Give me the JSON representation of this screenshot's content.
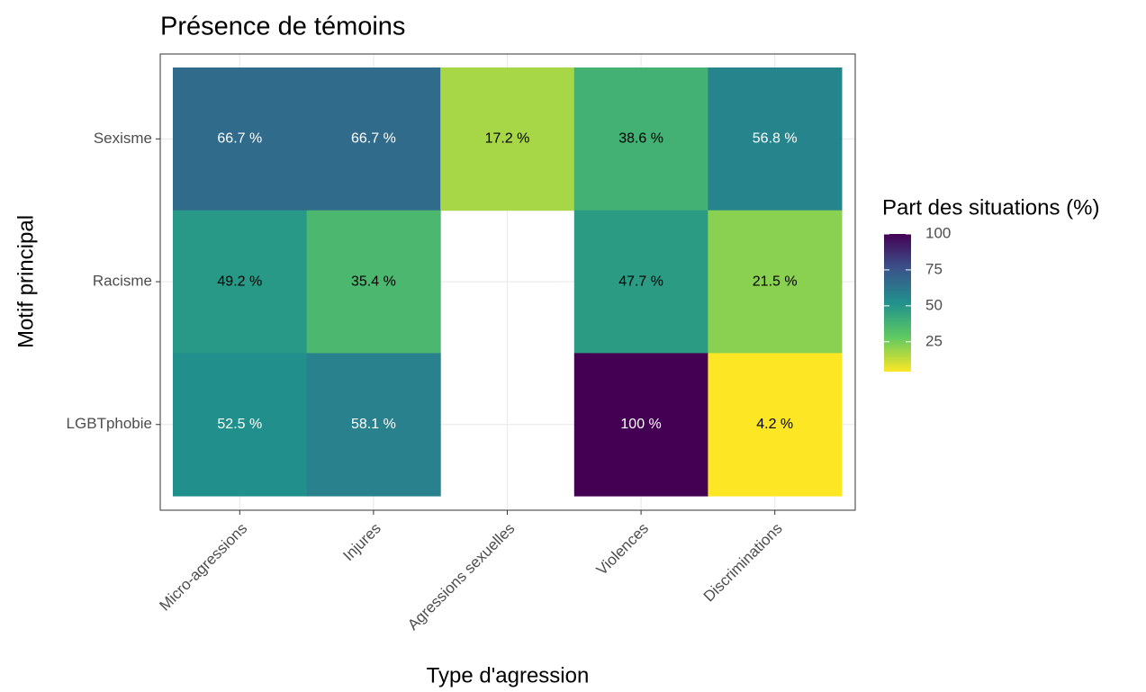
{
  "chart_data": {
    "type": "heatmap",
    "title": "Présence de témoins",
    "xlabel": "Type d'agression",
    "ylabel": "Motif principal",
    "x": [
      "Micro-agressions",
      "Injures",
      "Agressions sexuelles",
      "Violences",
      "Discriminations"
    ],
    "y": [
      "Sexisme",
      "Racisme",
      "LGBTphobie"
    ],
    "values": [
      [
        66.7,
        66.7,
        17.2,
        38.6,
        56.8
      ],
      [
        49.2,
        35.4,
        null,
        47.7,
        21.5
      ],
      [
        52.5,
        58.1,
        null,
        100,
        4.2
      ]
    ],
    "value_labels": [
      [
        "66.7 %",
        "66.7 %",
        "17.2 %",
        "38.6 %",
        "56.8 %"
      ],
      [
        "49.2 %",
        "35.4 %",
        null,
        "47.7 %",
        "21.5 %"
      ],
      [
        "52.5 %",
        "58.1 %",
        null,
        "100 %",
        "4.2 %"
      ]
    ],
    "colormap": "viridis-reversed",
    "legend_title": "Part des situations (%)",
    "clim": [
      4.2,
      100
    ],
    "cticks": [
      25,
      50,
      75,
      100
    ],
    "grid": true
  }
}
